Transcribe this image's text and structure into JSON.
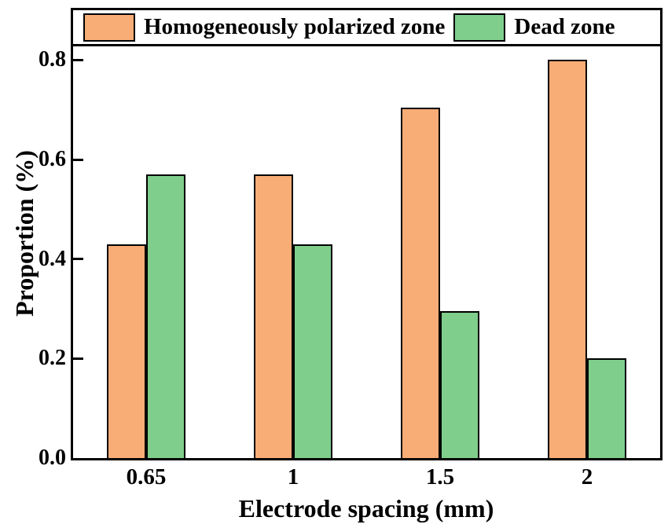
{
  "chart_data": {
    "type": "bar",
    "title": "",
    "xlabel": "Electrode spacing (mm)",
    "ylabel": "Proportion (%)",
    "categories": [
      "0.65",
      "1",
      "1.5",
      "2"
    ],
    "series": [
      {
        "name": "Homogeneously polarized zone",
        "color": "#F8AC76",
        "values": [
          0.43,
          0.57,
          0.705,
          0.8
        ]
      },
      {
        "name": "Dead zone",
        "color": "#7FCE8B",
        "values": [
          0.57,
          0.43,
          0.295,
          0.2
        ]
      }
    ],
    "ylim": [
      0,
      0.9
    ],
    "yticks": [
      0.0,
      0.2,
      0.4,
      0.6,
      0.8
    ],
    "ytick_labels": [
      "0.0",
      "0.2",
      "0.4",
      "0.6",
      "0.8"
    ],
    "grid": false,
    "legend_position": "top-strip-inside-frame",
    "bar_border_color": "#000000",
    "axis_color": "#000000",
    "background_color": "#ffffff"
  }
}
